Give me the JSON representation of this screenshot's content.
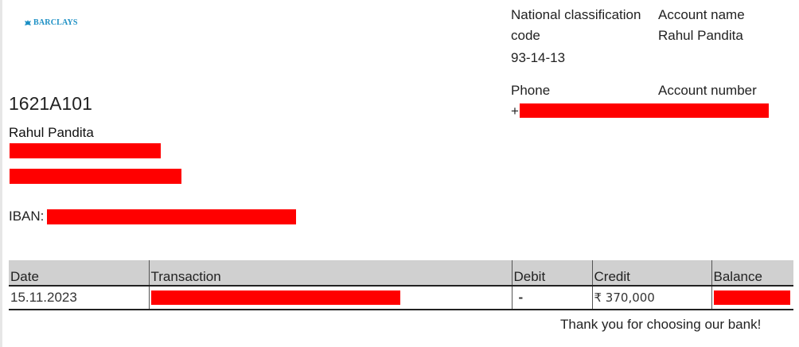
{
  "bank": {
    "logo_text": "BARCLAYS",
    "brand_color": "#1b8fc4",
    "logo_icon": "eagle-icon"
  },
  "statement": {
    "reference": "1621A101",
    "account_holder": "Rahul Pandita",
    "iban_label": "IBAN:",
    "redaction_color": "#ff0000"
  },
  "info": {
    "sort_code_label": "National classification code",
    "sort_code_value": "93-14-13",
    "account_name_label": "Account name",
    "account_name_value": "Rahul Pandita",
    "phone_label": "Phone",
    "phone_prefix": "+",
    "account_number_label": "Account number"
  },
  "table": {
    "headers": [
      "Date",
      "Transaction",
      "Debit",
      "Credit",
      "Balance"
    ],
    "rows": [
      {
        "date": "15.11.2023",
        "debit": "-",
        "credit": "₹ 370,000"
      }
    ]
  },
  "footer": {
    "thanks": "Thank you for choosing our bank!"
  }
}
